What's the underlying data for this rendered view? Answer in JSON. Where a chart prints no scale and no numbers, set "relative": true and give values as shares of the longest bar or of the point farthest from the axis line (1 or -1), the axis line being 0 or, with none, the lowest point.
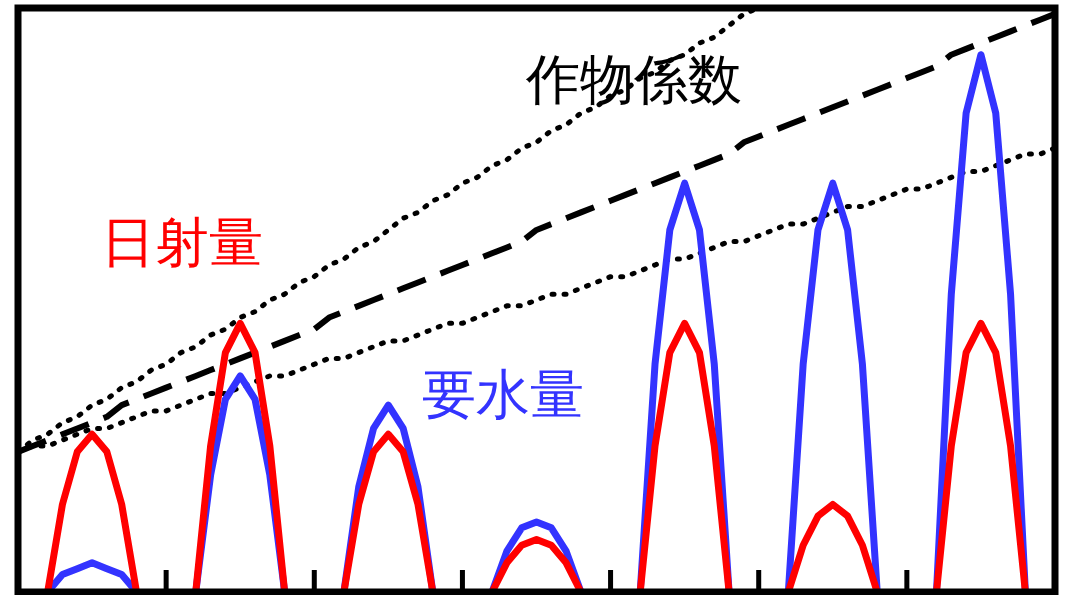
{
  "chart_data": {
    "type": "line",
    "relative": true,
    "categories": [
      null,
      null,
      null,
      null,
      null,
      null,
      null,
      null,
      null,
      null,
      null,
      null,
      null,
      null,
      null,
      null,
      null,
      null,
      null,
      null,
      null,
      null,
      null,
      null,
      null,
      null,
      null,
      null,
      null,
      null,
      null,
      null,
      null,
      null,
      null,
      null,
      null,
      null,
      null,
      null,
      null,
      null,
      null,
      null,
      null,
      null,
      null,
      null,
      null,
      null,
      null,
      null,
      null,
      null,
      null,
      null,
      null,
      null,
      null,
      null,
      null,
      null,
      null,
      null,
      null,
      null,
      null,
      null,
      null,
      null,
      null
    ],
    "series": [
      {
        "name": "日射量",
        "color": "#ff0000",
        "line_style": "solid",
        "values": [
          null,
          null,
          0,
          0.15,
          0.24,
          0.27,
          0.24,
          0.15,
          0,
          null,
          null,
          null,
          0,
          0.25,
          0.41,
          0.46,
          0.41,
          0.25,
          0,
          null,
          null,
          null,
          0,
          0.15,
          0.24,
          0.27,
          0.24,
          0.15,
          0,
          null,
          null,
          null,
          0,
          0.05,
          0.08,
          0.09,
          0.08,
          0.05,
          0,
          null,
          null,
          null,
          0,
          0.25,
          0.41,
          0.46,
          0.41,
          0.25,
          0,
          null,
          null,
          null,
          0,
          0.08,
          0.13,
          0.15,
          0.13,
          0.08,
          0,
          null,
          null,
          null,
          0,
          0.25,
          0.41,
          0.46,
          0.41,
          0.25,
          0,
          null,
          null
        ]
      },
      {
        "name": "要水量",
        "color": "#3333ff",
        "line_style": "solid",
        "values": [
          null,
          null,
          0,
          0.03,
          0.04,
          0.05,
          0.04,
          0.03,
          0,
          null,
          null,
          null,
          0,
          0.2,
          0.33,
          0.37,
          0.33,
          0.2,
          0,
          null,
          null,
          null,
          0,
          0.18,
          0.28,
          0.32,
          0.28,
          0.18,
          0,
          null,
          null,
          null,
          0,
          0.07,
          0.11,
          0.12,
          0.11,
          0.07,
          0,
          null,
          null,
          null,
          0,
          0.39,
          0.62,
          0.7,
          0.62,
          0.39,
          0,
          null,
          null,
          null,
          0,
          0.39,
          0.62,
          0.7,
          0.62,
          0.39,
          0,
          null,
          null,
          null,
          0,
          0.51,
          0.82,
          0.92,
          0.82,
          0.51,
          0,
          null,
          null
        ]
      },
      {
        "name": "作物係数",
        "color": "#000000",
        "line_style": "dashed",
        "values": [
          0.24,
          0.25,
          0.26,
          0.27,
          0.28,
          0.29,
          0.3,
          0.32,
          0.33,
          0.34,
          0.35,
          0.36,
          0.37,
          0.38,
          0.39,
          0.4,
          0.41,
          0.42,
          0.43,
          0.44,
          0.45,
          0.47,
          0.48,
          0.49,
          0.5,
          0.51,
          0.52,
          0.53,
          0.54,
          0.55,
          0.56,
          0.57,
          0.58,
          0.59,
          0.6,
          0.62,
          0.63,
          0.64,
          0.65,
          0.66,
          0.67,
          0.68,
          0.69,
          0.7,
          0.71,
          0.72,
          0.73,
          0.74,
          0.75,
          0.77,
          0.78,
          0.79,
          0.8,
          0.81,
          0.82,
          0.83,
          0.84,
          0.85,
          0.86,
          0.87,
          0.88,
          0.89,
          0.9,
          0.92,
          0.93,
          0.94,
          0.95,
          0.96,
          0.97,
          0.98,
          0.99
        ]
      },
      {
        "color": "#000000",
        "line_style": "dotted",
        "values": [
          0.24,
          0.26,
          0.27,
          0.29,
          0.3,
          0.32,
          0.33,
          0.35,
          0.36,
          0.38,
          0.39,
          0.41,
          0.42,
          0.44,
          0.45,
          0.47,
          0.48,
          0.5,
          0.51,
          0.53,
          0.54,
          0.56,
          0.57,
          0.59,
          0.6,
          0.62,
          0.64,
          0.65,
          0.67,
          0.68,
          0.7,
          0.71,
          0.73,
          0.74,
          0.76,
          0.77,
          0.79,
          0.8,
          0.82,
          0.83,
          0.85,
          0.86,
          0.88,
          0.89,
          0.91,
          0.92,
          0.94,
          0.95,
          0.97,
          0.99,
          1.0,
          null,
          null,
          null,
          null,
          null,
          null,
          null,
          null,
          null,
          null,
          null,
          null,
          null,
          null,
          null,
          null,
          null,
          null,
          null,
          null
        ]
      },
      {
        "color": "#000000",
        "line_style": "dotted",
        "values": [
          0.24,
          0.25,
          0.25,
          0.26,
          0.27,
          0.28,
          0.28,
          0.29,
          0.3,
          0.31,
          0.31,
          0.32,
          0.33,
          0.34,
          0.34,
          0.35,
          0.36,
          0.37,
          0.37,
          0.38,
          0.39,
          0.4,
          0.4,
          0.41,
          0.42,
          0.43,
          0.43,
          0.44,
          0.45,
          0.46,
          0.46,
          0.47,
          0.48,
          0.49,
          0.49,
          0.5,
          0.51,
          0.51,
          0.52,
          0.53,
          0.54,
          0.54,
          0.55,
          0.56,
          0.57,
          0.57,
          0.58,
          0.59,
          0.6,
          0.6,
          0.61,
          0.62,
          0.63,
          0.63,
          0.64,
          0.65,
          0.66,
          0.66,
          0.67,
          0.68,
          0.69,
          0.69,
          0.7,
          0.71,
          0.72,
          0.72,
          0.73,
          0.74,
          0.75,
          0.75,
          0.76
        ]
      }
    ]
  }
}
